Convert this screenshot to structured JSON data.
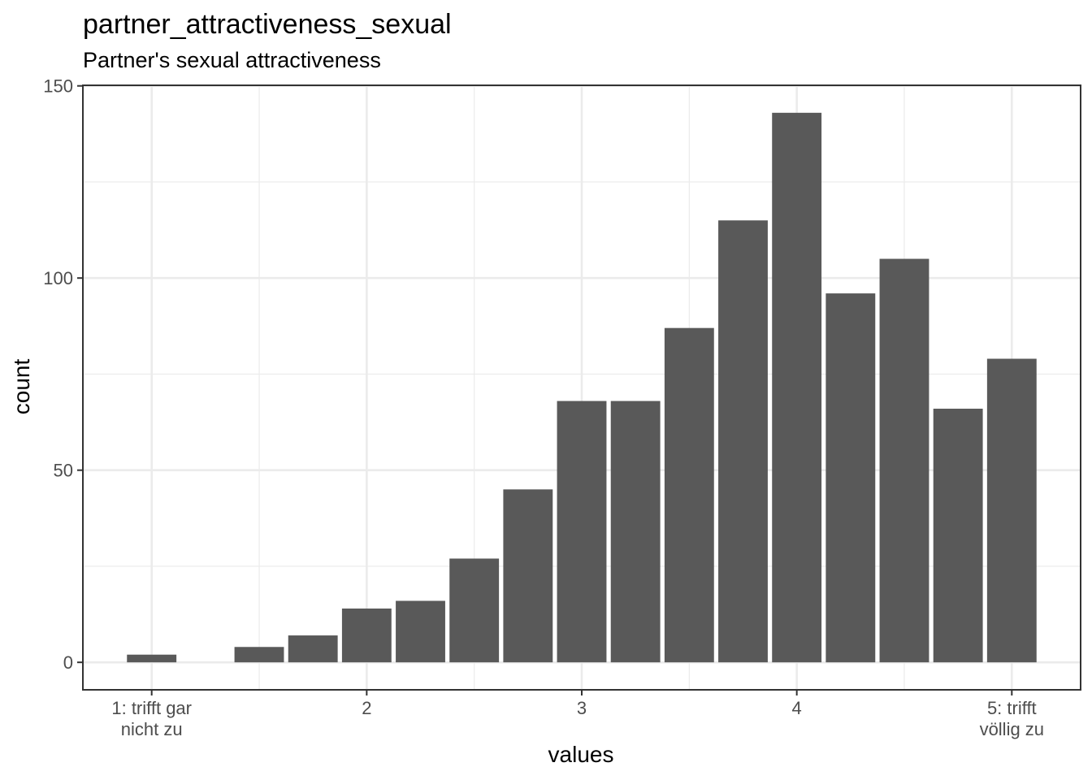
{
  "chart_data": {
    "type": "bar",
    "title": "partner_attractiveness_sexual",
    "subtitle": "Partner's sexual attractiveness",
    "xlabel": "values",
    "ylabel": "count",
    "xlim": [
      0.68,
      5.32
    ],
    "ylim": [
      -7.15,
      150.15
    ],
    "x_ticks": [
      {
        "value": 1,
        "label": [
          "1: trifft gar",
          "nicht zu"
        ]
      },
      {
        "value": 2,
        "label": [
          "2"
        ]
      },
      {
        "value": 3,
        "label": [
          "3"
        ]
      },
      {
        "value": 4,
        "label": [
          "4"
        ]
      },
      {
        "value": 5,
        "label": [
          "5: trifft",
          "völlig zu"
        ]
      }
    ],
    "y_ticks": [
      0,
      50,
      100,
      150
    ],
    "bar_width": 0.23,
    "bar_color": "#595959",
    "bars": [
      {
        "x": 1.0,
        "value": 2
      },
      {
        "x": 1.5,
        "value": 4
      },
      {
        "x": 1.75,
        "value": 7
      },
      {
        "x": 2.0,
        "value": 14
      },
      {
        "x": 2.25,
        "value": 16
      },
      {
        "x": 2.5,
        "value": 27
      },
      {
        "x": 2.75,
        "value": 45
      },
      {
        "x": 3.0,
        "value": 68
      },
      {
        "x": 3.25,
        "value": 68
      },
      {
        "x": 3.5,
        "value": 87
      },
      {
        "x": 3.75,
        "value": 115
      },
      {
        "x": 4.0,
        "value": 143
      },
      {
        "x": 4.25,
        "value": 96
      },
      {
        "x": 4.5,
        "value": 105
      },
      {
        "x": 4.75,
        "value": 66
      },
      {
        "x": 5.0,
        "value": 79
      }
    ],
    "grid": true,
    "theme": "bw"
  }
}
